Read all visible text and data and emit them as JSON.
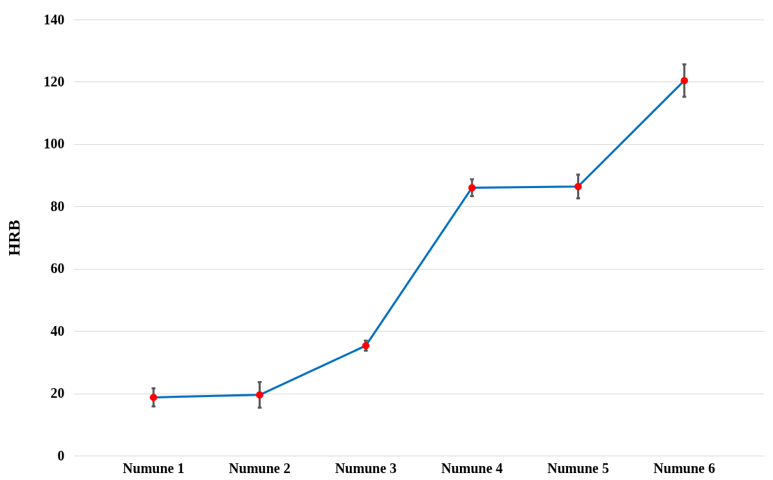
{
  "chart_data": {
    "type": "line",
    "ylabel": "HRB",
    "categories": [
      "Numune 1",
      "Numune 2",
      "Numune 3",
      "Numune 4",
      "Numune 5",
      "Numune 6"
    ],
    "series": [
      {
        "color": "#0070c0",
        "values": [
          18.7,
          19.5,
          35.3,
          86,
          86.4,
          120.4
        ],
        "errors": [
          2.9,
          4.1,
          1.6,
          2.7,
          3.8,
          5.2
        ]
      }
    ],
    "ylim": [
      0,
      140
    ],
    "yticks": [
      0,
      20,
      40,
      60,
      80,
      100,
      120,
      140
    ],
    "grid": "y",
    "marker": "circle",
    "line_style": "solid"
  }
}
